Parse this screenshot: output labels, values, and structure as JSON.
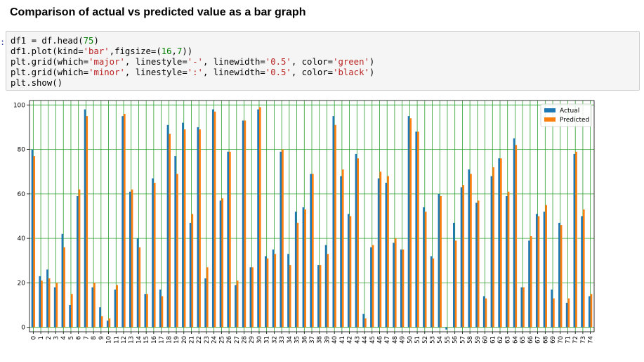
{
  "heading": "Comparison of actual vs predicted value as a bar graph",
  "prompt": ":",
  "code": [
    [
      {
        "t": "df1 = df.head(",
        "c": "kw"
      },
      {
        "t": "75",
        "c": "num"
      },
      {
        "t": ")",
        "c": "kw"
      }
    ],
    [
      {
        "t": "df1.plot(kind=",
        "c": "kw"
      },
      {
        "t": "'bar'",
        "c": "str"
      },
      {
        "t": ",figsize=(",
        "c": "kw"
      },
      {
        "t": "16",
        "c": "num"
      },
      {
        "t": ",",
        "c": "kw"
      },
      {
        "t": "7",
        "c": "num"
      },
      {
        "t": "))",
        "c": "kw"
      }
    ],
    [
      {
        "t": "plt.grid(which=",
        "c": "kw"
      },
      {
        "t": "'major'",
        "c": "str"
      },
      {
        "t": ", linestyle=",
        "c": "kw"
      },
      {
        "t": "'-'",
        "c": "str"
      },
      {
        "t": ", linewidth=",
        "c": "kw"
      },
      {
        "t": "'0.5'",
        "c": "str"
      },
      {
        "t": ", color=",
        "c": "kw"
      },
      {
        "t": "'green'",
        "c": "str"
      },
      {
        "t": ")",
        "c": "kw"
      }
    ],
    [
      {
        "t": "plt.grid(which=",
        "c": "kw"
      },
      {
        "t": "'minor'",
        "c": "str"
      },
      {
        "t": ", linestyle=",
        "c": "kw"
      },
      {
        "t": "':'",
        "c": "str"
      },
      {
        "t": ", linewidth=",
        "c": "kw"
      },
      {
        "t": "'0.5'",
        "c": "str"
      },
      {
        "t": ", color=",
        "c": "kw"
      },
      {
        "t": "'black'",
        "c": "str"
      },
      {
        "t": ")",
        "c": "kw"
      }
    ],
    [
      {
        "t": "plt.show()",
        "c": "kw"
      }
    ]
  ],
  "chart_data": {
    "type": "bar",
    "title": "",
    "xlabel": "",
    "ylabel": "",
    "ylim": [
      -2,
      102
    ],
    "yticks": [
      0,
      20,
      40,
      60,
      80,
      100
    ],
    "grid": true,
    "grid_color": "#2ca02c",
    "legend_position": "top-right",
    "categories": [
      "0",
      "1",
      "2",
      "3",
      "4",
      "5",
      "6",
      "7",
      "8",
      "9",
      "10",
      "11",
      "12",
      "13",
      "14",
      "15",
      "16",
      "17",
      "18",
      "19",
      "20",
      "21",
      "22",
      "23",
      "24",
      "25",
      "26",
      "27",
      "28",
      "29",
      "30",
      "31",
      "32",
      "33",
      "34",
      "35",
      "36",
      "37",
      "38",
      "39",
      "40",
      "41",
      "42",
      "43",
      "44",
      "45",
      "46",
      "47",
      "48",
      "49",
      "50",
      "51",
      "52",
      "53",
      "54",
      "55",
      "56",
      "57",
      "58",
      "59",
      "60",
      "61",
      "62",
      "63",
      "64",
      "65",
      "66",
      "67",
      "68",
      "69",
      "70",
      "71",
      "72",
      "73",
      "74"
    ],
    "series": [
      {
        "name": "Actual",
        "color": "#1f77b4",
        "values": [
          80,
          23,
          26,
          18,
          42,
          10,
          59,
          98,
          18,
          9,
          3,
          17,
          95,
          61,
          40,
          15,
          67,
          17,
          91,
          77,
          92,
          47,
          90,
          22,
          98,
          57,
          79,
          19,
          93,
          27,
          98,
          32,
          35,
          79,
          33,
          52,
          54,
          69,
          28,
          37,
          95,
          68,
          51,
          78,
          6,
          36,
          67,
          65,
          38,
          35,
          95,
          88,
          54,
          32,
          60,
          -1,
          47,
          63,
          71,
          56,
          14,
          68,
          76,
          59,
          85,
          18,
          39,
          51,
          52,
          17,
          47,
          11,
          78,
          50,
          14
        ]
      },
      {
        "name": "Predicted",
        "color": "#ff7f0e",
        "values": [
          77,
          21,
          22,
          20,
          36,
          15,
          62,
          95,
          20,
          5,
          4,
          19,
          96,
          62,
          36,
          15,
          65,
          14,
          87,
          69,
          89,
          51,
          89,
          27,
          97,
          58,
          79,
          21,
          93,
          27,
          99,
          31,
          33,
          80,
          28,
          47,
          53,
          69,
          28,
          33,
          91,
          71,
          50,
          76,
          4,
          37,
          70,
          68,
          40,
          35,
          94,
          88,
          52,
          31,
          59,
          0,
          39,
          64,
          69,
          57,
          13,
          72,
          76,
          61,
          82,
          18,
          41,
          50,
          55,
          13,
          46,
          13,
          79,
          53,
          15
        ]
      }
    ]
  }
}
